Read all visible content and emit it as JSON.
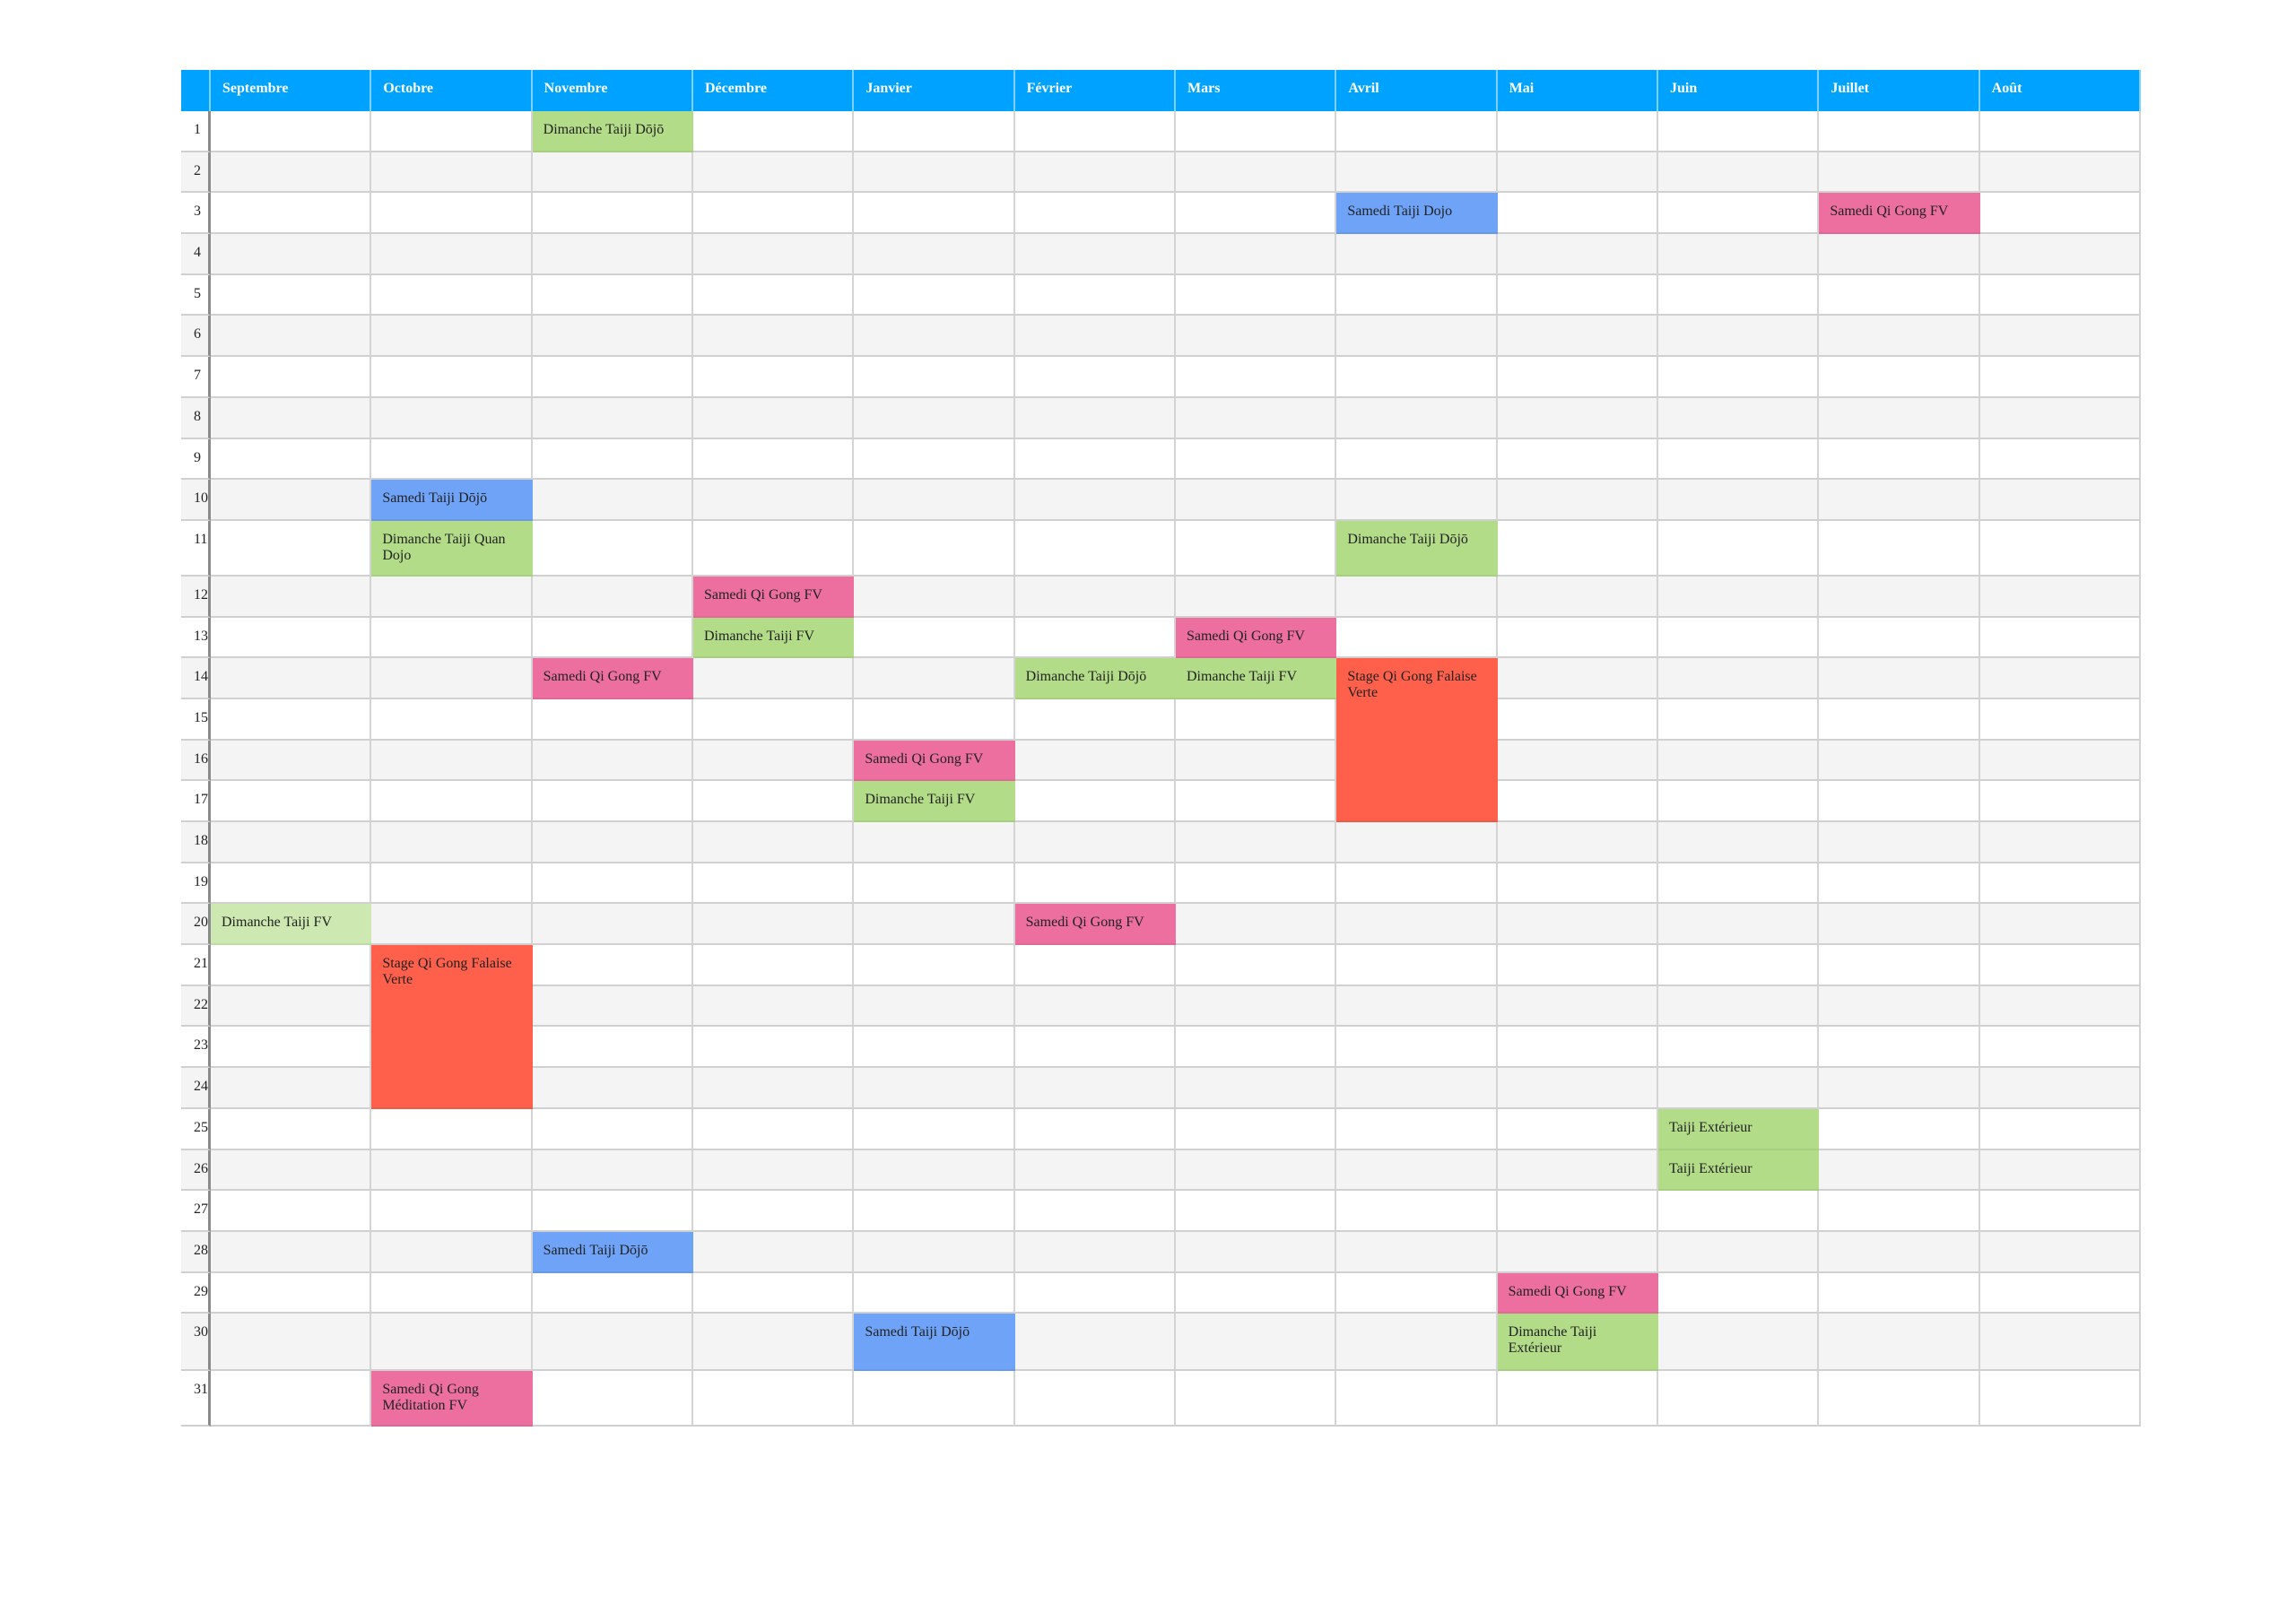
{
  "colors": {
    "header": "#00a2ff",
    "green": "#b3dc89",
    "light_green": "#cde8b0",
    "pink": "#ec6fa0",
    "blue": "#6fa3f7",
    "red": "#fe604b"
  },
  "months": [
    "Septembre",
    "Octobre",
    "Novembre",
    "Décembre",
    "Janvier",
    "Février",
    "Mars",
    "Avril",
    "Mai",
    "Juin",
    "Juillet",
    "Août"
  ],
  "days": [
    "1",
    "2",
    "3",
    "4",
    "5",
    "6",
    "7",
    "8",
    "9",
    "10",
    "11",
    "12",
    "13",
    "14",
    "15",
    "16",
    "17",
    "18",
    "19",
    "20",
    "21",
    "22",
    "23",
    "24",
    "25",
    "26",
    "27",
    "28",
    "29",
    "30",
    "31"
  ],
  "events": [
    {
      "month": 2,
      "day": 1,
      "span": 1,
      "color": "green",
      "text": "Dimanche Taiji Dōjō"
    },
    {
      "month": 7,
      "day": 3,
      "span": 1,
      "color": "blue",
      "text": "Samedi  Taiji Dojo"
    },
    {
      "month": 10,
      "day": 3,
      "span": 1,
      "color": "pink",
      "text": "Samedi Qi Gong FV"
    },
    {
      "month": 1,
      "day": 10,
      "span": 1,
      "color": "blue",
      "text": "Samedi Taiji Dōjō"
    },
    {
      "month": 1,
      "day": 11,
      "span": 1,
      "color": "green",
      "text": "Dimanche Taiji Quan Dojo"
    },
    {
      "month": 7,
      "day": 11,
      "span": 1,
      "color": "green",
      "text": "Dimanche Taiji Dōjō"
    },
    {
      "month": 3,
      "day": 12,
      "span": 1,
      "color": "pink",
      "text": "Samedi Qi Gong FV"
    },
    {
      "month": 3,
      "day": 13,
      "span": 1,
      "color": "green",
      "text": "Dimanche Taiji FV"
    },
    {
      "month": 6,
      "day": 13,
      "span": 1,
      "color": "pink",
      "text": "Samedi Qi Gong FV"
    },
    {
      "month": 2,
      "day": 14,
      "span": 1,
      "color": "pink",
      "text": "Samedi Qi Gong FV"
    },
    {
      "month": 5,
      "day": 14,
      "span": 1,
      "color": "green",
      "text": "Dimanche Taiji  Dōjō"
    },
    {
      "month": 6,
      "day": 14,
      "span": 1,
      "color": "green",
      "text": "Dimanche Taiji FV"
    },
    {
      "month": 7,
      "day": 14,
      "span": 4,
      "color": "red",
      "text": "Stage Qi Gong Falaise Verte"
    },
    {
      "month": 4,
      "day": 16,
      "span": 1,
      "color": "pink",
      "text": "Samedi Qi Gong FV"
    },
    {
      "month": 4,
      "day": 17,
      "span": 1,
      "color": "green",
      "text": "Dimanche Taiji FV"
    },
    {
      "month": 0,
      "day": 20,
      "span": 1,
      "color": "light_green",
      "text": "Dimanche Taiji FV"
    },
    {
      "month": 5,
      "day": 20,
      "span": 1,
      "color": "pink",
      "text": "Samedi Qi Gong FV"
    },
    {
      "month": 1,
      "day": 21,
      "span": 4,
      "color": "red",
      "text": "Stage Qi Gong Falaise Verte"
    },
    {
      "month": 9,
      "day": 25,
      "span": 1,
      "color": "green",
      "text": "Taiji Extérieur"
    },
    {
      "month": 9,
      "day": 26,
      "span": 1,
      "color": "green",
      "text": "Taiji Extérieur"
    },
    {
      "month": 2,
      "day": 28,
      "span": 1,
      "color": "blue",
      "text": "Samedi Taiji Dōjō"
    },
    {
      "month": 8,
      "day": 29,
      "span": 1,
      "color": "pink",
      "text": "Samedi Qi Gong FV"
    },
    {
      "month": 4,
      "day": 30,
      "span": 1,
      "color": "blue",
      "text": "Samedi Taiji Dōjō"
    },
    {
      "month": 8,
      "day": 30,
      "span": 1,
      "color": "green",
      "text": "Dimanche Taiji Extérieur"
    },
    {
      "month": 1,
      "day": 31,
      "span": 1,
      "color": "pink",
      "text": "Samedi Qi Gong Méditation FV"
    }
  ]
}
